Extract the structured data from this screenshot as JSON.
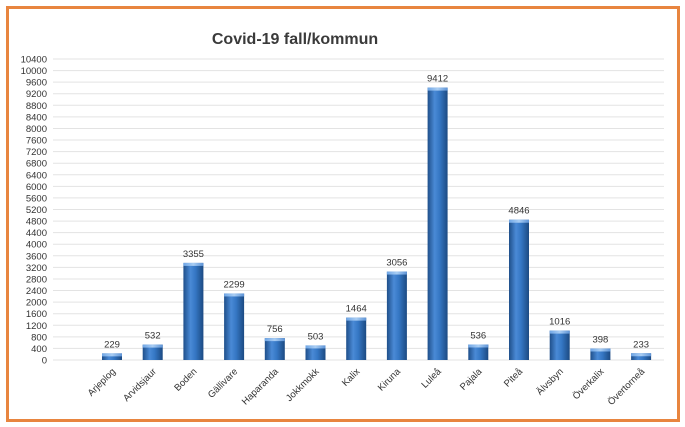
{
  "chart_data": {
    "type": "bar",
    "title": "Covid-19 fall/kommun",
    "xlabel": "",
    "ylabel": "",
    "ylim": [
      0,
      10400
    ],
    "ytick_step": 400,
    "grid": true,
    "legend": "none",
    "categories": [
      "Arjeplog",
      "Arvidsjaur",
      "Boden",
      "Gällivare",
      "Haparanda",
      "Jokkmokk",
      "Kalix",
      "Kiruna",
      "Luleå",
      "Pajala",
      "Piteå",
      "Älvsbyn",
      "Överkalix",
      "Övertorneå"
    ],
    "values": [
      229,
      532,
      3355,
      2299,
      756,
      503,
      1464,
      3056,
      9412,
      536,
      4846,
      1016,
      398,
      233
    ],
    "bar_color": "#2e6db3"
  }
}
